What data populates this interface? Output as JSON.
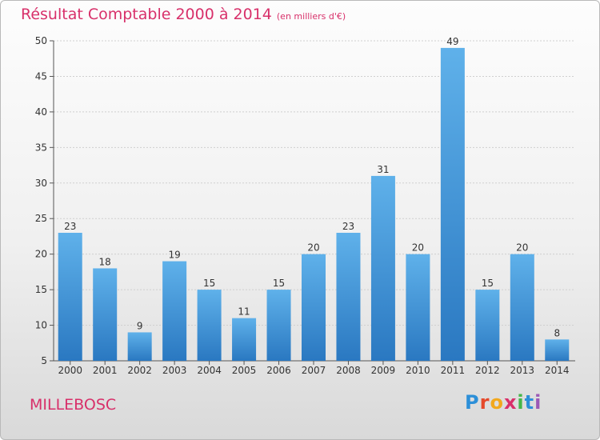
{
  "header": {
    "title": "Résultat Comptable 2000 à 2014",
    "subtitle": "(en milliers d'€)"
  },
  "town": "MILLEBOSC",
  "brand": {
    "letters": [
      "P",
      "r",
      "o",
      "x",
      "i",
      "t",
      "i"
    ],
    "colors": [
      "#2c8fd8",
      "#e5492b",
      "#f2a81d",
      "#d8306a",
      "#45b649",
      "#2c8fd8",
      "#9b59b6"
    ]
  },
  "colors": {
    "bar_top": "#5fb1ea",
    "bar_bottom": "#2a78c1",
    "title": "#d8306a"
  },
  "chart_data": {
    "type": "bar",
    "title": "Résultat Comptable 2000 à 2014",
    "subtitle": "(en milliers d'€)",
    "xlabel": "",
    "ylabel": "",
    "categories": [
      "2000",
      "2001",
      "2002",
      "2003",
      "2004",
      "2005",
      "2006",
      "2007",
      "2008",
      "2009",
      "2010",
      "2011",
      "2012",
      "2013",
      "2014"
    ],
    "values": [
      23,
      18,
      9,
      19,
      15,
      11,
      15,
      20,
      23,
      31,
      20,
      49,
      15,
      20,
      8
    ],
    "ylim": [
      5,
      50
    ],
    "yticks": [
      5,
      10,
      15,
      20,
      25,
      30,
      35,
      40,
      45,
      50
    ],
    "grid": true,
    "legend": "none"
  }
}
